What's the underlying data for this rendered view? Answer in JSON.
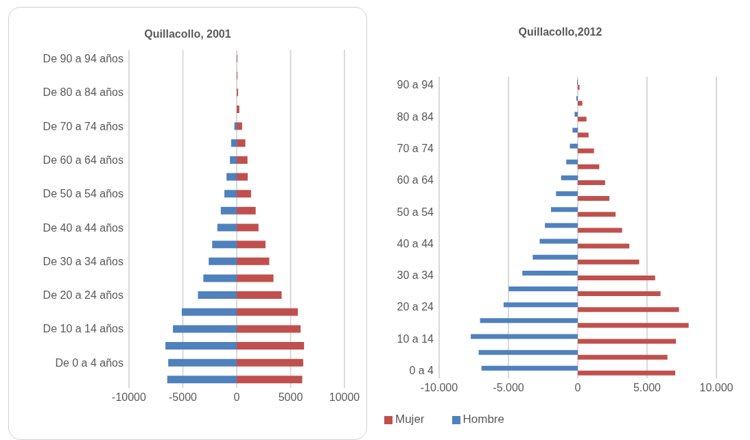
{
  "chart_data": [
    {
      "type": "bar",
      "orientation": "horizontal",
      "title": "Quillacollo, 2001",
      "categories": [
        "De 90 a 94 años",
        null,
        "De 80 a 84 años",
        null,
        "De 70 a 74 años",
        null,
        "De 60 a 64 años",
        null,
        "De 50 a 54 años",
        null,
        "De 40 a 44 años",
        null,
        "De 30 a 34 años",
        null,
        "De 20 a 24 años",
        null,
        "De 10 a 14 años",
        null,
        "De 0 a 4 años",
        null
      ],
      "series": [
        {
          "color": "#c0504d",
          "values": [
            60,
            60,
            120,
            240,
            500,
            800,
            1000,
            1020,
            1330,
            1760,
            2020,
            2670,
            3020,
            3410,
            4170,
            5670,
            5930,
            6250,
            6170,
            6080
          ]
        },
        {
          "color": "#4f81bd",
          "values": [
            0,
            0,
            0,
            0,
            -220,
            -520,
            -630,
            -950,
            -1150,
            -1480,
            -1800,
            -2280,
            -2600,
            -3100,
            -3600,
            -5100,
            -5920,
            -6620,
            -6360,
            -6450
          ]
        }
      ],
      "stacked": true,
      "xlim": [
        -10000,
        10000
      ],
      "xticks": [
        -10000,
        -5000,
        0,
        5000,
        10000
      ],
      "grid": "x"
    },
    {
      "type": "bar",
      "orientation": "horizontal",
      "title": "Quillacollo,2012",
      "categories": [
        "90 a 94",
        null,
        "80 a 84",
        null,
        "70 a 74",
        null,
        "60 a 64",
        null,
        "50 a 54",
        null,
        "40 a 44",
        null,
        "30 a 34",
        null,
        "20 a 24",
        null,
        "10 a 14",
        null,
        "0 a 4"
      ],
      "series": [
        {
          "name": "Mujer",
          "color": "#c0504d",
          "values": [
            130,
            330,
            630,
            780,
            1170,
            1550,
            1970,
            2280,
            2730,
            3200,
            3720,
            4430,
            5580,
            5970,
            7300,
            8000,
            7080,
            6470,
            7030
          ]
        },
        {
          "name": "Hombre",
          "color": "#4f81bd",
          "values": [
            -50,
            -100,
            -230,
            -380,
            -570,
            -830,
            -1200,
            -1570,
            -1930,
            -2370,
            -2750,
            -3250,
            -4000,
            -4980,
            -5350,
            -7050,
            -7720,
            -7150,
            -6950
          ]
        }
      ],
      "xlim": [
        -10000,
        10000
      ],
      "xticks": [
        {
          "value": -10000,
          "label": "-10.000"
        },
        {
          "value": -5000,
          "label": "-5.000"
        },
        0,
        {
          "value": 5000,
          "label": "5.000"
        },
        {
          "value": 10000,
          "label": "10.000"
        }
      ],
      "grid": "x",
      "legend": "bottom left"
    }
  ]
}
